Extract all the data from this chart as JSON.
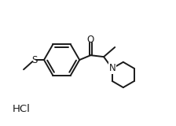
{
  "background_color": "#ffffff",
  "line_color": "#1a1a1a",
  "line_width": 1.4,
  "text_color": "#1a1a1a",
  "hcl_text": "HCl",
  "o_label": "O",
  "s_label": "S",
  "n_label": "N",
  "font_size": 8.5,
  "figsize": [
    2.24,
    1.6
  ],
  "dpi": 100,
  "xlim": [
    0,
    11
  ],
  "ylim": [
    0,
    8
  ]
}
